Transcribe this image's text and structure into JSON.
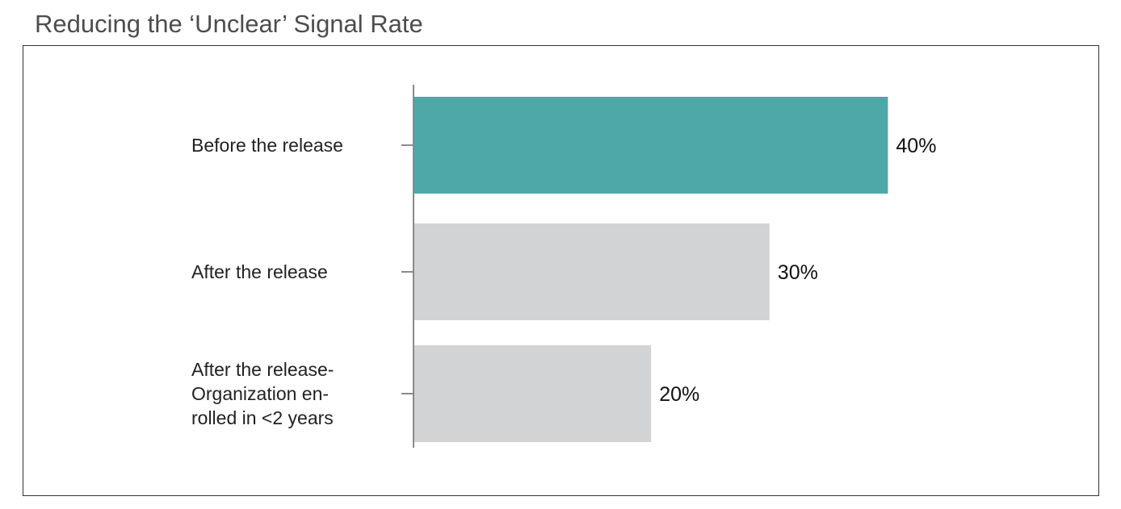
{
  "chart_data": {
    "type": "bar",
    "orientation": "horizontal",
    "title": "Reducing the ‘Unclear’ Signal Rate",
    "categories": [
      [
        "Before the release"
      ],
      [
        "After the release"
      ],
      [
        "After the release-",
        "Organization en-",
        "rolled in <2 years"
      ]
    ],
    "values": [
      40,
      30,
      20
    ],
    "value_labels": [
      "40%",
      "30%",
      "20%"
    ],
    "xlim": [
      0,
      50
    ],
    "colors": [
      "#4fa8a8",
      "#d2d3d5",
      "#d2d3d5"
    ],
    "grid": false,
    "legend": "none"
  }
}
